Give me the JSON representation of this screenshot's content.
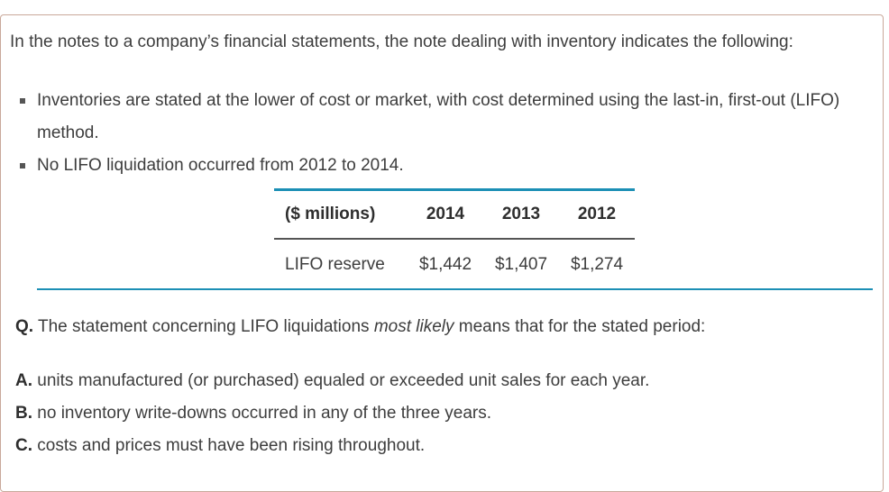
{
  "intro": "In the notes to a company’s financial statements, the note dealing with inventory indicates the following:",
  "bullets": [
    "Inventories are stated at the lower of cost or market, with cost determined using the last-in, first-out (LIFO) method.",
    "No LIFO liquidation occurred from 2012 to 2014."
  ],
  "table": {
    "headers": [
      "($ millions)",
      "2014",
      "2013",
      "2012"
    ],
    "row": [
      "LIFO reserve",
      "$1,442",
      "$1,407",
      "$1,274"
    ]
  },
  "question": {
    "label": "Q.",
    "text_before": "The statement concerning LIFO liquidations",
    "text_emphasis": "most likely",
    "text_after": "means that for the stated period:"
  },
  "options": [
    {
      "letter": "A.",
      "text": "units manufactured (or purchased) equaled or exceeded unit sales for each year."
    },
    {
      "letter": "B.",
      "text": "no inventory write-downs occurred in any of the three years."
    },
    {
      "letter": "C.",
      "text": "costs and prices must have been rising throughout."
    }
  ],
  "colors": {
    "accent": "#1c8fb5",
    "card_border": "#c9a89a",
    "text": "#3d3d3d"
  }
}
